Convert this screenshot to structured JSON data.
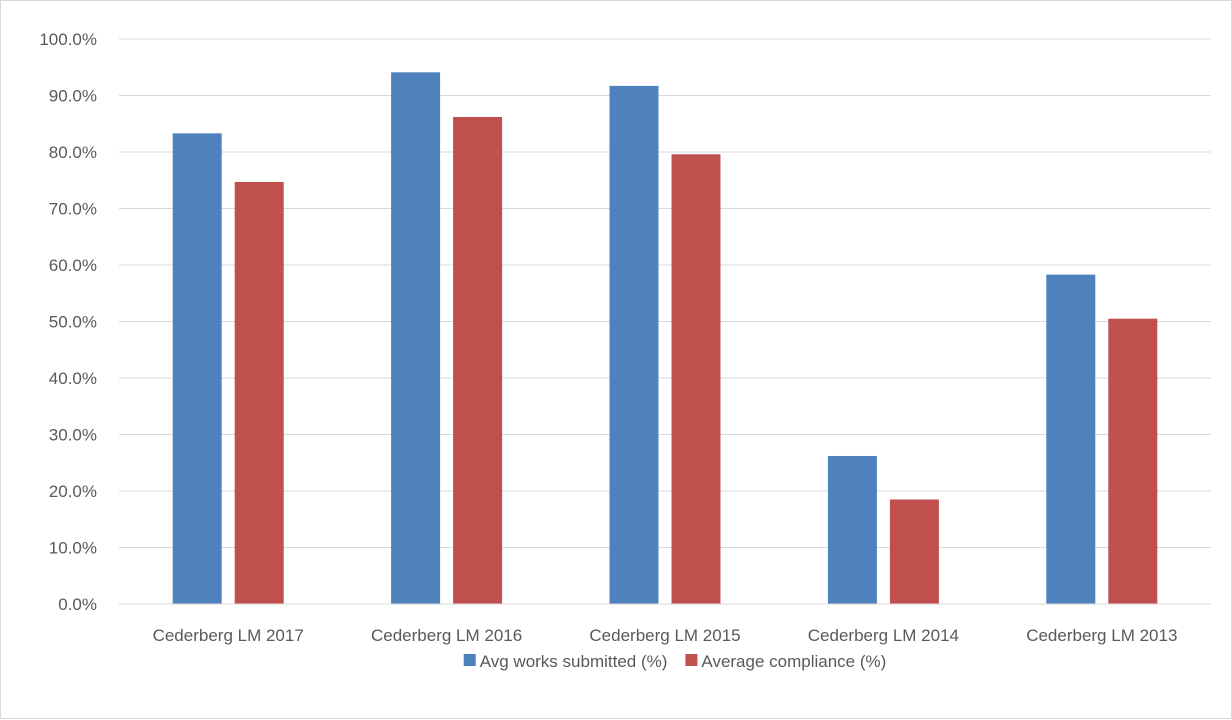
{
  "chart_data": {
    "type": "bar",
    "categories": [
      "Cederberg LM 2017",
      "Cederberg LM 2016",
      "Cederberg LM 2015",
      "Cederberg LM 2014",
      "Cederberg LM 2013"
    ],
    "series": [
      {
        "name": "Avg works submitted (%)",
        "values": [
          83.3,
          94.1,
          91.7,
          26.2,
          58.3
        ],
        "color": "#4f81bd"
      },
      {
        "name": "Average compliance (%)",
        "values": [
          74.7,
          86.2,
          79.6,
          18.5,
          50.5
        ],
        "color": "#c0504d"
      }
    ],
    "title": "",
    "xlabel": "",
    "ylabel": "",
    "ylim": [
      0,
      100
    ],
    "yticks": [
      "0.0%",
      "10.0%",
      "20.0%",
      "30.0%",
      "40.0%",
      "50.0%",
      "60.0%",
      "70.0%",
      "80.0%",
      "90.0%",
      "100.0%"
    ],
    "grid": true,
    "legend_position": "bottom",
    "gridline_color": "#d9d9d9",
    "text_color": "#595959"
  }
}
